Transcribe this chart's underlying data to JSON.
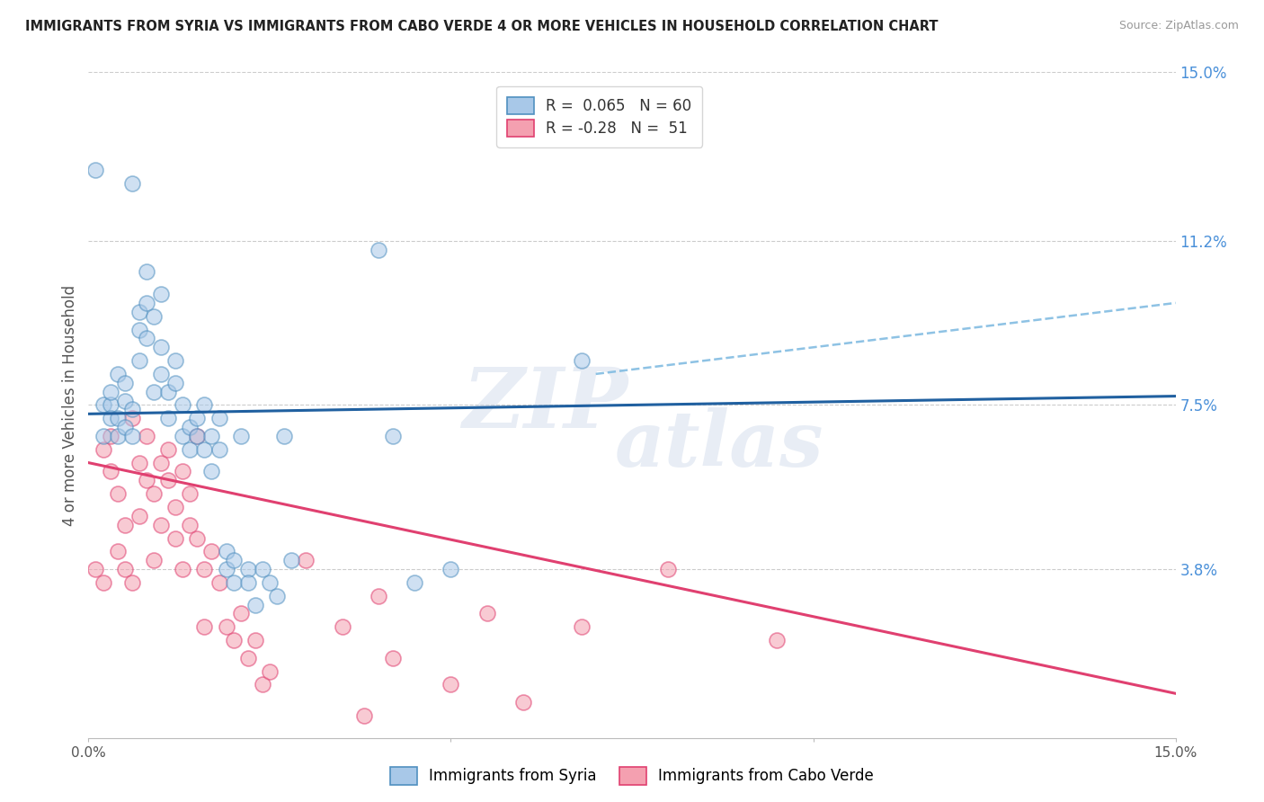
{
  "title": "IMMIGRANTS FROM SYRIA VS IMMIGRANTS FROM CABO VERDE 4 OR MORE VEHICLES IN HOUSEHOLD CORRELATION CHART",
  "source": "Source: ZipAtlas.com",
  "ylabel": "4 or more Vehicles in Household",
  "xlim": [
    0.0,
    0.15
  ],
  "ylim": [
    0.0,
    0.15
  ],
  "grid_color": "#cccccc",
  "background_color": "#ffffff",
  "syria_color": "#a8c8e8",
  "cabo_verde_color": "#f4a0b0",
  "syria_R": 0.065,
  "syria_N": 60,
  "cabo_verde_R": -0.28,
  "cabo_verde_N": 51,
  "syria_line_color": "#2060a0",
  "cabo_verde_line_color": "#e04070",
  "syria_line_start_y": 0.073,
  "syria_line_end_y": 0.077,
  "cabo_verde_line_start_y": 0.062,
  "cabo_verde_line_end_y": 0.01,
  "dashed_line_start_x": 0.07,
  "dashed_line_start_y": 0.082,
  "dashed_line_end_x": 0.15,
  "dashed_line_end_y": 0.098,
  "syria_scatter_x": [
    0.001,
    0.002,
    0.002,
    0.003,
    0.003,
    0.003,
    0.004,
    0.004,
    0.004,
    0.005,
    0.005,
    0.005,
    0.006,
    0.006,
    0.006,
    0.007,
    0.007,
    0.007,
    0.008,
    0.008,
    0.008,
    0.009,
    0.009,
    0.01,
    0.01,
    0.01,
    0.011,
    0.011,
    0.012,
    0.012,
    0.013,
    0.013,
    0.014,
    0.014,
    0.015,
    0.015,
    0.016,
    0.016,
    0.017,
    0.017,
    0.018,
    0.018,
    0.019,
    0.019,
    0.02,
    0.02,
    0.021,
    0.022,
    0.022,
    0.023,
    0.024,
    0.025,
    0.026,
    0.027,
    0.028,
    0.04,
    0.042,
    0.045,
    0.05,
    0.068
  ],
  "syria_scatter_y": [
    0.128,
    0.075,
    0.068,
    0.075,
    0.072,
    0.078,
    0.082,
    0.068,
    0.072,
    0.076,
    0.08,
    0.07,
    0.074,
    0.068,
    0.125,
    0.092,
    0.085,
    0.096,
    0.098,
    0.105,
    0.09,
    0.095,
    0.078,
    0.1,
    0.088,
    0.082,
    0.078,
    0.072,
    0.08,
    0.085,
    0.068,
    0.075,
    0.07,
    0.065,
    0.072,
    0.068,
    0.065,
    0.075,
    0.068,
    0.06,
    0.072,
    0.065,
    0.038,
    0.042,
    0.035,
    0.04,
    0.068,
    0.038,
    0.035,
    0.03,
    0.038,
    0.035,
    0.032,
    0.068,
    0.04,
    0.11,
    0.068,
    0.035,
    0.038,
    0.085
  ],
  "cabo_verde_scatter_x": [
    0.001,
    0.002,
    0.002,
    0.003,
    0.003,
    0.004,
    0.004,
    0.005,
    0.005,
    0.006,
    0.006,
    0.007,
    0.007,
    0.008,
    0.008,
    0.009,
    0.009,
    0.01,
    0.01,
    0.011,
    0.011,
    0.012,
    0.012,
    0.013,
    0.013,
    0.014,
    0.014,
    0.015,
    0.015,
    0.016,
    0.016,
    0.017,
    0.018,
    0.019,
    0.02,
    0.021,
    0.022,
    0.023,
    0.024,
    0.025,
    0.03,
    0.035,
    0.038,
    0.04,
    0.042,
    0.05,
    0.055,
    0.06,
    0.068,
    0.08,
    0.095
  ],
  "cabo_verde_scatter_y": [
    0.038,
    0.065,
    0.035,
    0.06,
    0.068,
    0.055,
    0.042,
    0.048,
    0.038,
    0.072,
    0.035,
    0.062,
    0.05,
    0.068,
    0.058,
    0.055,
    0.04,
    0.062,
    0.048,
    0.058,
    0.065,
    0.052,
    0.045,
    0.06,
    0.038,
    0.055,
    0.048,
    0.068,
    0.045,
    0.038,
    0.025,
    0.042,
    0.035,
    0.025,
    0.022,
    0.028,
    0.018,
    0.022,
    0.012,
    0.015,
    0.04,
    0.025,
    0.005,
    0.032,
    0.018,
    0.012,
    0.028,
    0.008,
    0.025,
    0.038,
    0.022
  ],
  "watermark_line1": "ZIP",
  "watermark_line2": "atlas"
}
